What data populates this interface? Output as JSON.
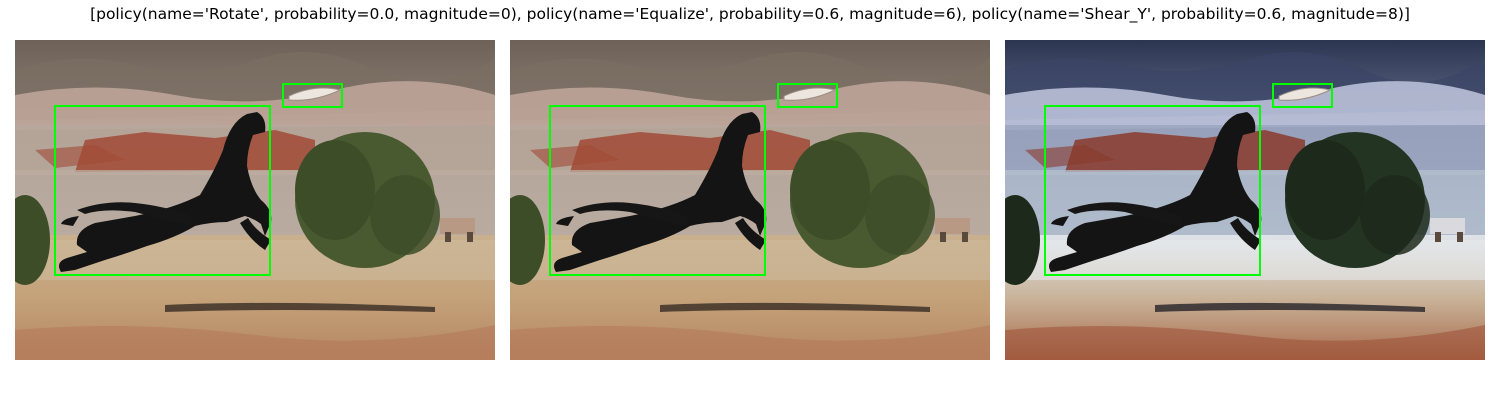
{
  "title": "[policy(name='Rotate', probability=0.0, magnitude=0), policy(name='Equalize', probability=0.6, magnitude=6), policy(name='Shear_Y', probability=0.6, magnitude=8)]",
  "box_color": "#00ff00",
  "panels": [
    {
      "variant": "original",
      "boxes": [
        "dog",
        "frisbee"
      ]
    },
    {
      "variant": "equalize",
      "boxes": [
        "dog",
        "frisbee"
      ]
    },
    {
      "variant": "shear_y-high-contrast",
      "boxes": [
        "dog",
        "frisbee"
      ]
    }
  ]
}
